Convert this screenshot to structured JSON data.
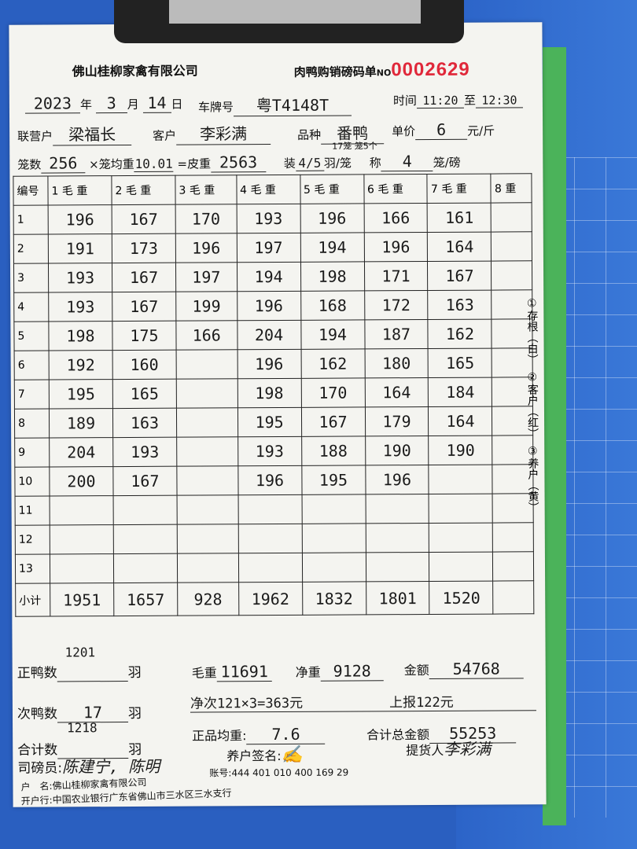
{
  "header": {
    "company": "佛山桂柳家禽有限公司",
    "form_title": "肉鸭购销磅码单",
    "no_label": "NO",
    "serial": "0002629"
  },
  "date": {
    "year": "2023",
    "year_l": "年",
    "month": "3",
    "month_l": "月",
    "day": "14",
    "day_l": "日"
  },
  "plate": {
    "label": "车牌号",
    "value": "粤T4148T"
  },
  "time": {
    "label": "时间",
    "from": "11:20",
    "to_label": "至",
    "to": "12:30"
  },
  "partner": {
    "label": "联营户",
    "value": "梁福长"
  },
  "customer": {
    "label": "客户",
    "value": "李彩满"
  },
  "breed": {
    "label": "品种",
    "value": "番鸭"
  },
  "price": {
    "label": "单价",
    "value": "6",
    "unit": "元/斤"
  },
  "cages": {
    "label": "笼数",
    "value": "256",
    "avg_label": "×笼均重",
    "avg": "10.01",
    "tare_label": "=皮重",
    "tare": "2563",
    "pack_label": "装",
    "pack": "4/5",
    "pack_unit": "羽/笼",
    "pack_note": "17笼 笼5个",
    "weigh_label": "称",
    "weigh": "4",
    "weigh_unit": "笼/磅"
  },
  "table": {
    "headers": [
      "编号",
      "1 毛 重",
      "2 毛 重",
      "3 毛 重",
      "4 毛 重",
      "5 毛 重",
      "6 毛 重",
      "7 毛 重",
      "8 重"
    ],
    "row_labels": [
      "1",
      "2",
      "3",
      "4",
      "5",
      "6",
      "7",
      "8",
      "9",
      "10",
      "11",
      "12",
      "13"
    ],
    "columns": [
      [
        "196",
        "191",
        "193",
        "193",
        "198",
        "192",
        "195",
        "189",
        "204",
        "200"
      ],
      [
        "167",
        "173",
        "167",
        "167",
        "175",
        "160",
        "165",
        "163",
        "193",
        "167"
      ],
      [
        "170",
        "196",
        "197",
        "199",
        "166"
      ],
      [
        "193",
        "197",
        "194",
        "196",
        "204",
        "196",
        "198",
        "195",
        "193",
        "196"
      ],
      [
        "196",
        "194",
        "198",
        "168",
        "194",
        "162",
        "170",
        "167",
        "188",
        "195"
      ],
      [
        "166",
        "196",
        "171",
        "172",
        "187",
        "180",
        "164",
        "179",
        "190",
        "196"
      ],
      [
        "161",
        "164",
        "167",
        "163",
        "162",
        "165",
        "184",
        "164",
        "190"
      ],
      []
    ],
    "subtotal_label": "小计",
    "subtotals": [
      "1951",
      "1657",
      "928",
      "1962",
      "1832",
      "1801",
      "1520",
      ""
    ]
  },
  "side_note": [
    "①存根（白）",
    "②客户（红）",
    "③养户（黄）"
  ],
  "summary": {
    "good_label": "正鸭数",
    "good": "1201",
    "unit": "羽",
    "gross_label": "毛重",
    "gross": "11691",
    "net_label": "净重",
    "net": "9128",
    "amount_label": "金额",
    "amount": "54768",
    "note1": "净次121×3=363元",
    "note2": "上报122元",
    "second_label": "次鸭数",
    "second": "17",
    "total_label": "合计数",
    "total": "1218",
    "avg_label": "正品均重:",
    "avg": "7.6",
    "grand_label": "合计总金额",
    "grand": "55253",
    "farmer_sig_label": "养户签名:",
    "pickup_label": "提货人",
    "pickup": "李彩满",
    "weigher_label": "司磅员:",
    "weigher": "陈建宁, 陈明",
    "account_label": "账号:",
    "account": "444 401 010 400 169 29",
    "holder_label": "户　名:",
    "holder": "佛山桂柳家禽有限公司",
    "bank_label": "开户行:",
    "bank": "中国农业银行广东省佛山市三水区三水支行"
  }
}
